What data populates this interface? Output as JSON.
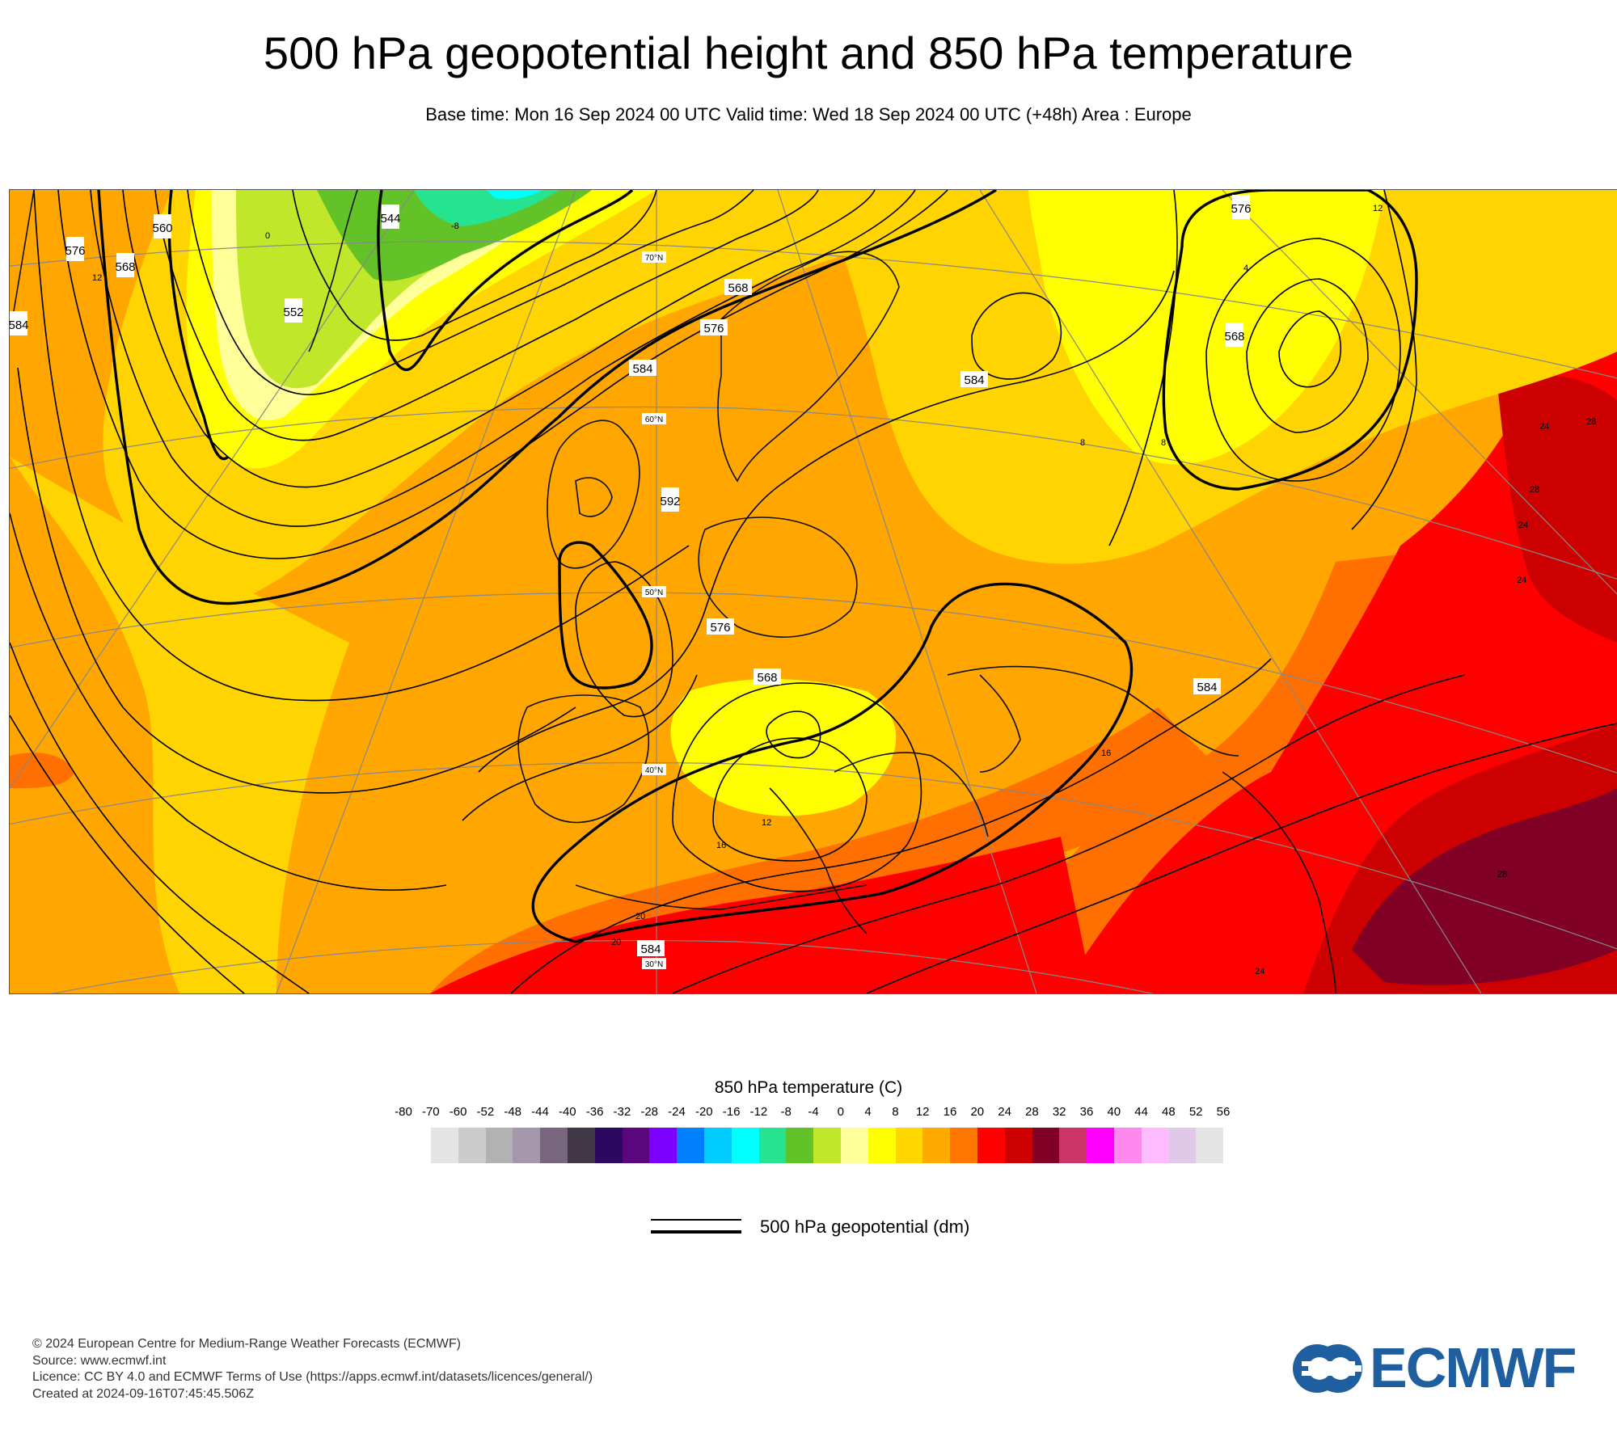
{
  "header": {
    "title": "500 hPa geopotential height and 850 hPa temperature",
    "subtitle": "Base time: Mon 16 Sep 2024 00 UTC Valid time: Wed 18 Sep 2024 00 UTC (+48h) Area : Europe"
  },
  "map": {
    "area": "Europe",
    "contour_labels": [
      "576",
      "568",
      "560",
      "552",
      "544",
      "584",
      "576",
      "568",
      "584",
      "592",
      "576",
      "568",
      "576",
      "568",
      "584",
      "584",
      "584"
    ],
    "temperature_labels": [
      "12",
      "0",
      "-8",
      "4",
      "8",
      "12",
      "8",
      "12",
      "16",
      "16",
      "20",
      "20",
      "24",
      "24",
      "24",
      "24",
      "28",
      "28",
      "28"
    ],
    "latitude_labels": [
      "70°N",
      "60°N",
      "50°N",
      "40°N",
      "30°N"
    ]
  },
  "legend": {
    "temperature_title": "850 hPa temperature (C)",
    "tick_labels": [
      "-80",
      "-70",
      "-60",
      "-52",
      "-48",
      "-44",
      "-40",
      "-36",
      "-32",
      "-28",
      "-24",
      "-20",
      "-16",
      "-12",
      "-8",
      "-4",
      "0",
      "4",
      "8",
      "12",
      "16",
      "20",
      "24",
      "28",
      "32",
      "36",
      "40",
      "44",
      "48",
      "52",
      "56"
    ],
    "colors": [
      "#e4e4e4",
      "#cccccc",
      "#b2b2b2",
      "#a597ab",
      "#77667d",
      "#403847",
      "#2d0860",
      "#5a077e",
      "#7c00ff",
      "#0080ff",
      "#00ccff",
      "#00ffff",
      "#26e38f",
      "#62c227",
      "#c1e72b",
      "#ffff99",
      "#ffff00",
      "#ffd700",
      "#ffaa00",
      "#ff7700",
      "#ff0000",
      "#cc0000",
      "#800026",
      "#cc3366",
      "#ff00ff",
      "#ff88ee",
      "#ffbbff",
      "#e0c8e8",
      "#e4e4e4"
    ],
    "contour_label": "500 hPa geopotential (dm)"
  },
  "footer": {
    "copyright": "© 2024 European Centre for Medium-Range Weather Forecasts (ECMWF)",
    "source": "Source: www.ecmwf.int",
    "licence": "Licence: CC BY 4.0 and ECMWF Terms of Use (https://apps.ecmwf.int/datasets/licences/general/)",
    "created": "Created at 2024-09-16T07:45:45.506Z"
  },
  "logo": {
    "text": "ECMWF",
    "color": "#1f5fa0"
  }
}
